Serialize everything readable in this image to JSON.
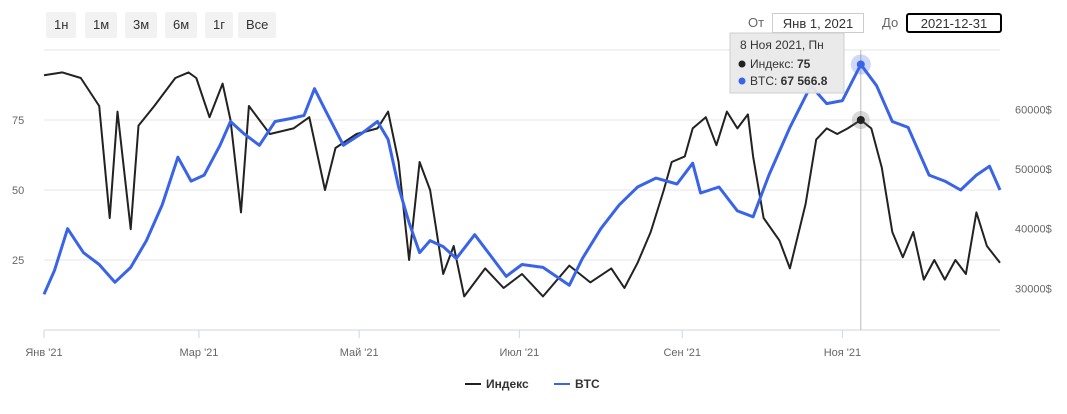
{
  "range_selector": {
    "buttons": [
      {
        "label": "1н"
      },
      {
        "label": "1м"
      },
      {
        "label": "3м"
      },
      {
        "label": "6м"
      },
      {
        "label": "1г"
      },
      {
        "label": "Все"
      }
    ],
    "from_label": "От",
    "from_value": "Янв 1, 2021",
    "to_label": "До",
    "to_value": "2021-12-31"
  },
  "tooltip": {
    "date": "8 Ноя 2021, Пн",
    "index_label": "Индекс: ",
    "index_value": "75",
    "btc_label": "BTC: ",
    "btc_value": "67 566.8"
  },
  "colors": {
    "index": "#222222",
    "btc": "#3a64e8",
    "grid": "#e6e6e6"
  },
  "chart_data": {
    "type": "line",
    "x_ticks": [
      "Янв '21",
      "Мар '21",
      "Май '21",
      "Июл '21",
      "Сен '21",
      "Ноя '21"
    ],
    "x_tick_dates": [
      "2021-01-01",
      "2021-03-01",
      "2021-05-01",
      "2021-07-01",
      "2021-09-01",
      "2021-11-01"
    ],
    "left_axis": {
      "ticks": [
        25,
        50,
        75
      ],
      "tick_labels": [
        "25",
        "50",
        "75"
      ],
      "range": [
        0,
        100
      ]
    },
    "right_axis": {
      "ticks": [
        30000,
        40000,
        50000,
        60000
      ],
      "tick_labels": [
        "30000$",
        "40000$",
        "50000$",
        "60000$"
      ],
      "range": [
        23000,
        70000
      ]
    },
    "legend_position": "bottom-center",
    "grid": true,
    "series": [
      {
        "name": "Индекс",
        "axis": "left",
        "points": [
          [
            "2021-01-01",
            91
          ],
          [
            "2021-01-08",
            92
          ],
          [
            "2021-01-15",
            90
          ],
          [
            "2021-01-22",
            80
          ],
          [
            "2021-01-26",
            40
          ],
          [
            "2021-01-29",
            78
          ],
          [
            "2021-02-03",
            36
          ],
          [
            "2021-02-06",
            73
          ],
          [
            "2021-02-12",
            80
          ],
          [
            "2021-02-20",
            90
          ],
          [
            "2021-02-25",
            92
          ],
          [
            "2021-02-28",
            90
          ],
          [
            "2021-03-05",
            76
          ],
          [
            "2021-03-10",
            88
          ],
          [
            "2021-03-13",
            75
          ],
          [
            "2021-03-17",
            42
          ],
          [
            "2021-03-20",
            80
          ],
          [
            "2021-03-28",
            70
          ],
          [
            "2021-04-06",
            72
          ],
          [
            "2021-04-12",
            76
          ],
          [
            "2021-04-18",
            50
          ],
          [
            "2021-04-22",
            65
          ],
          [
            "2021-04-30",
            70
          ],
          [
            "2021-05-08",
            72
          ],
          [
            "2021-05-12",
            78
          ],
          [
            "2021-05-16",
            60
          ],
          [
            "2021-05-20",
            25
          ],
          [
            "2021-05-24",
            60
          ],
          [
            "2021-05-28",
            50
          ],
          [
            "2021-06-02",
            20
          ],
          [
            "2021-06-06",
            30
          ],
          [
            "2021-06-10",
            12
          ],
          [
            "2021-06-18",
            22
          ],
          [
            "2021-06-25",
            15
          ],
          [
            "2021-07-02",
            20
          ],
          [
            "2021-07-10",
            12
          ],
          [
            "2021-07-20",
            23
          ],
          [
            "2021-07-28",
            17
          ],
          [
            "2021-08-05",
            22
          ],
          [
            "2021-08-10",
            15
          ],
          [
            "2021-08-15",
            24
          ],
          [
            "2021-08-20",
            35
          ],
          [
            "2021-08-25",
            50
          ],
          [
            "2021-08-28",
            60
          ],
          [
            "2021-09-02",
            62
          ],
          [
            "2021-09-05",
            72
          ],
          [
            "2021-09-10",
            76
          ],
          [
            "2021-09-14",
            66
          ],
          [
            "2021-09-18",
            78
          ],
          [
            "2021-09-22",
            72
          ],
          [
            "2021-09-26",
            77
          ],
          [
            "2021-09-28",
            62
          ],
          [
            "2021-10-02",
            40
          ],
          [
            "2021-10-08",
            32
          ],
          [
            "2021-10-12",
            22
          ],
          [
            "2021-10-18",
            45
          ],
          [
            "2021-10-22",
            68
          ],
          [
            "2021-10-26",
            72
          ],
          [
            "2021-10-30",
            70
          ],
          [
            "2021-11-03",
            72
          ],
          [
            "2021-11-08",
            75
          ],
          [
            "2021-11-12",
            72
          ],
          [
            "2021-11-16",
            58
          ],
          [
            "2021-11-20",
            35
          ],
          [
            "2021-11-24",
            26
          ],
          [
            "2021-11-28",
            35
          ],
          [
            "2021-12-02",
            18
          ],
          [
            "2021-12-06",
            25
          ],
          [
            "2021-12-10",
            18
          ],
          [
            "2021-12-14",
            25
          ],
          [
            "2021-12-18",
            20
          ],
          [
            "2021-12-22",
            42
          ],
          [
            "2021-12-26",
            30
          ],
          [
            "2021-12-31",
            24
          ]
        ]
      },
      {
        "name": "BTC",
        "axis": "right",
        "points": [
          [
            "2021-01-01",
            29000
          ],
          [
            "2021-01-05",
            33000
          ],
          [
            "2021-01-10",
            40000
          ],
          [
            "2021-01-16",
            36000
          ],
          [
            "2021-01-22",
            34000
          ],
          [
            "2021-01-28",
            31000
          ],
          [
            "2021-02-03",
            33500
          ],
          [
            "2021-02-09",
            38000
          ],
          [
            "2021-02-15",
            44000
          ],
          [
            "2021-02-21",
            52000
          ],
          [
            "2021-02-26",
            48000
          ],
          [
            "2021-03-03",
            49000
          ],
          [
            "2021-03-09",
            54000
          ],
          [
            "2021-03-13",
            58000
          ],
          [
            "2021-03-18",
            56000
          ],
          [
            "2021-03-24",
            54000
          ],
          [
            "2021-03-30",
            58000
          ],
          [
            "2021-04-05",
            58500
          ],
          [
            "2021-04-10",
            59000
          ],
          [
            "2021-04-14",
            63500
          ],
          [
            "2021-04-18",
            60000
          ],
          [
            "2021-04-25",
            54000
          ],
          [
            "2021-05-02",
            56000
          ],
          [
            "2021-05-08",
            58000
          ],
          [
            "2021-05-12",
            55000
          ],
          [
            "2021-05-16",
            47000
          ],
          [
            "2021-05-20",
            41000
          ],
          [
            "2021-05-24",
            36000
          ],
          [
            "2021-05-28",
            38000
          ],
          [
            "2021-06-02",
            37000
          ],
          [
            "2021-06-07",
            35000
          ],
          [
            "2021-06-14",
            39000
          ],
          [
            "2021-06-20",
            35500
          ],
          [
            "2021-06-26",
            32000
          ],
          [
            "2021-07-02",
            34000
          ],
          [
            "2021-07-10",
            33500
          ],
          [
            "2021-07-20",
            30500
          ],
          [
            "2021-07-25",
            35000
          ],
          [
            "2021-08-01",
            40000
          ],
          [
            "2021-08-08",
            44000
          ],
          [
            "2021-08-15",
            47000
          ],
          [
            "2021-08-22",
            48500
          ],
          [
            "2021-08-30",
            47500
          ],
          [
            "2021-09-05",
            51000
          ],
          [
            "2021-09-08",
            46000
          ],
          [
            "2021-09-15",
            47000
          ],
          [
            "2021-09-22",
            43000
          ],
          [
            "2021-09-28",
            42000
          ],
          [
            "2021-10-04",
            49000
          ],
          [
            "2021-10-12",
            57000
          ],
          [
            "2021-10-20",
            64000
          ],
          [
            "2021-10-26",
            61000
          ],
          [
            "2021-11-01",
            61500
          ],
          [
            "2021-11-08",
            67566.8
          ],
          [
            "2021-11-14",
            64000
          ],
          [
            "2021-11-20",
            58000
          ],
          [
            "2021-11-26",
            57000
          ],
          [
            "2021-12-04",
            49000
          ],
          [
            "2021-12-10",
            48000
          ],
          [
            "2021-12-16",
            46500
          ],
          [
            "2021-12-22",
            49000
          ],
          [
            "2021-12-27",
            50500
          ],
          [
            "2021-12-31",
            46500
          ]
        ]
      }
    ]
  }
}
